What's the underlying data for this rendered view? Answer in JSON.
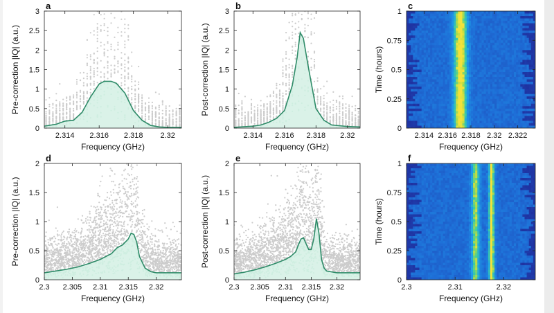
{
  "colors": {
    "line": "#2e8b68",
    "fill": "#cdeee0",
    "scatter": "#cccccc",
    "heat_low": "#1f2a9a",
    "heat_mid": "#1fa0e8",
    "heat_high": "#f3e23a"
  },
  "chart_data": [
    {
      "panel": "a",
      "type": "line",
      "xlabel": "Frequency (GHz)",
      "ylabel": "Pre-correction |IQ| (a.u.)",
      "xlim": [
        2.3128,
        2.3208
      ],
      "ylim": [
        0,
        3
      ],
      "xticks": [
        2.314,
        2.316,
        2.318,
        2.32
      ],
      "xticklabels": [
        "2.314",
        "2.316",
        "2.318",
        "2.32"
      ],
      "yticks": [
        0,
        0.5,
        1,
        1.5,
        2,
        2.5,
        3
      ],
      "yticklabels": [
        "0",
        "0.5",
        "1",
        "1.5",
        "2",
        "2.5",
        "3"
      ],
      "scatter_background": true,
      "x": [
        2.3128,
        2.3135,
        2.314,
        2.3145,
        2.315,
        2.3155,
        2.316,
        2.3163,
        2.3167,
        2.317,
        2.3175,
        2.318,
        2.3185,
        2.319,
        2.3195,
        2.32,
        2.3208
      ],
      "y": [
        0.05,
        0.1,
        0.18,
        0.2,
        0.4,
        0.8,
        1.13,
        1.2,
        1.2,
        1.15,
        0.9,
        0.45,
        0.2,
        0.07,
        0.03,
        0.02,
        0.02
      ]
    },
    {
      "panel": "b",
      "type": "line",
      "xlabel": "Frequency (GHz)",
      "ylabel": "Post-correction |IQ| (a.u.)",
      "xlim": [
        2.3128,
        2.3208
      ],
      "ylim": [
        0,
        3
      ],
      "xticks": [
        2.314,
        2.316,
        2.318,
        2.32
      ],
      "xticklabels": [
        "2.314",
        "2.316",
        "2.318",
        "2.32"
      ],
      "yticks": [
        0,
        0.5,
        1,
        1.5,
        2,
        2.5,
        3
      ],
      "yticklabels": [
        "0",
        "0.5",
        "1",
        "1.5",
        "2",
        "2.5",
        "3"
      ],
      "scatter_background": true,
      "x": [
        2.3128,
        2.314,
        2.3145,
        2.315,
        2.3155,
        2.316,
        2.3165,
        2.3168,
        2.317,
        2.3172,
        2.3175,
        2.318,
        2.3185,
        2.319,
        2.32,
        2.3208
      ],
      "y": [
        0.02,
        0.05,
        0.08,
        0.15,
        0.25,
        0.45,
        1.1,
        1.8,
        2.45,
        2.3,
        1.6,
        0.5,
        0.2,
        0.08,
        0.04,
        0.03
      ]
    },
    {
      "panel": "c",
      "type": "heatmap",
      "xlabel": "Frequency (GHz)",
      "ylabel": "Time (hours)",
      "xlim": [
        2.3125,
        2.3235
      ],
      "ylim": [
        0,
        1
      ],
      "xticks": [
        2.314,
        2.316,
        2.318,
        2.32,
        2.322
      ],
      "xticklabels": [
        "2.314",
        "2.316",
        "2.318",
        "2.32",
        "2.322"
      ],
      "yticks": [
        0,
        0.25,
        0.5,
        0.75,
        1
      ],
      "yticklabels": [
        "0",
        "0.25",
        "0.5",
        "0.75",
        "1"
      ],
      "peaks": [
        {
          "freq": 2.3171,
          "width": 0.0004,
          "intensity": 1.0
        }
      ]
    },
    {
      "panel": "d",
      "type": "line",
      "xlabel": "Frequency (GHz)",
      "ylabel": "Pre-correction |IQ| (a.u.)",
      "xlim": [
        2.3,
        2.3245
      ],
      "ylim": [
        0,
        2
      ],
      "xticks": [
        2.3,
        2.305,
        2.31,
        2.315,
        2.32
      ],
      "xticklabels": [
        "2.3",
        "2.305",
        "2.31",
        "2.315",
        "2.32"
      ],
      "yticks": [
        0,
        0.5,
        1,
        1.5,
        2
      ],
      "yticklabels": [
        "0",
        "0.5",
        "1",
        "1.5",
        "2"
      ],
      "scatter_background": true,
      "x": [
        2.3,
        2.302,
        2.304,
        2.306,
        2.308,
        2.31,
        2.311,
        2.312,
        2.313,
        2.314,
        2.315,
        2.3155,
        2.316,
        2.3165,
        2.317,
        2.318,
        2.319,
        2.32,
        2.322,
        2.3245
      ],
      "y": [
        0.12,
        0.15,
        0.18,
        0.22,
        0.28,
        0.35,
        0.4,
        0.45,
        0.55,
        0.6,
        0.7,
        0.8,
        0.78,
        0.65,
        0.4,
        0.2,
        0.14,
        0.12,
        0.12,
        0.12
      ]
    },
    {
      "panel": "e",
      "type": "line",
      "xlabel": "Frequency (GHz)",
      "ylabel": "Post-correction |IQ| (a.u.)",
      "xlim": [
        2.3,
        2.3245
      ],
      "ylim": [
        0,
        2
      ],
      "xticks": [
        2.3,
        2.305,
        2.31,
        2.315,
        2.32
      ],
      "xticklabels": [
        "2.3",
        "2.305",
        "2.31",
        "2.315",
        "2.32"
      ],
      "yticks": [
        0,
        0.5,
        1,
        1.5,
        2
      ],
      "yticklabels": [
        "0",
        "0.5",
        "1",
        "1.5",
        "2"
      ],
      "scatter_background": true,
      "x": [
        2.3,
        2.302,
        2.304,
        2.306,
        2.308,
        2.31,
        2.311,
        2.312,
        2.3125,
        2.313,
        2.3135,
        2.314,
        2.3145,
        2.315,
        2.3155,
        2.316,
        2.3165,
        2.317,
        2.3175,
        2.318,
        2.32,
        2.322,
        2.3245
      ],
      "y": [
        0.1,
        0.13,
        0.17,
        0.22,
        0.28,
        0.35,
        0.4,
        0.48,
        0.6,
        0.7,
        0.72,
        0.62,
        0.52,
        0.52,
        0.7,
        1.05,
        0.8,
        0.35,
        0.2,
        0.15,
        0.12,
        0.12,
        0.12
      ]
    },
    {
      "panel": "f",
      "type": "heatmap",
      "xlabel": "Frequency (GHz)",
      "ylabel": "Time (hours)",
      "xlim": [
        2.3,
        2.3265
      ],
      "ylim": [
        0,
        1
      ],
      "xticks": [
        2.3,
        2.31,
        2.32
      ],
      "xticklabels": [
        "2.3",
        "2.31",
        "2.32"
      ],
      "yticks": [
        0,
        0.25,
        0.5,
        0.75,
        1
      ],
      "yticklabels": [
        "0",
        "0.25",
        "0.5",
        "0.75",
        "1"
      ],
      "peaks": [
        {
          "freq": 2.3142,
          "width": 0.0006,
          "intensity": 0.75
        },
        {
          "freq": 2.3175,
          "width": 0.0004,
          "intensity": 1.0
        }
      ]
    }
  ]
}
